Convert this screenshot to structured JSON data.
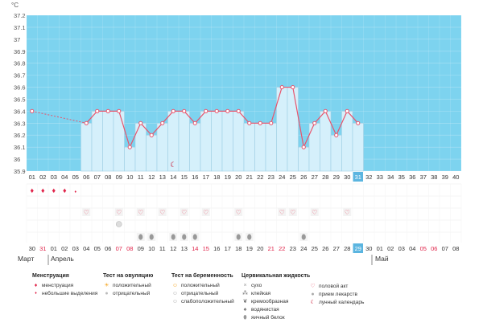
{
  "chart_data": {
    "type": "line",
    "unit_label": "°C",
    "y_ticks": [
      "35.9",
      "36",
      "36.1",
      "36.2",
      "36.3",
      "36.4",
      "36.5",
      "36.6",
      "36.7",
      "36.8",
      "36.9",
      "37",
      "37.1",
      "37.2"
    ],
    "ylim": [
      35.9,
      37.2
    ],
    "x_top": [
      "01",
      "02",
      "03",
      "04",
      "05",
      "06",
      "07",
      "08",
      "09",
      "10",
      "11",
      "12",
      "13",
      "14",
      "15",
      "16",
      "17",
      "18",
      "19",
      "20",
      "21",
      "22",
      "23",
      "24",
      "25",
      "26",
      "27",
      "28",
      "29",
      "30",
      "31",
      "32",
      "33",
      "34",
      "35",
      "36",
      "37",
      "38",
      "39",
      "40"
    ],
    "x_highlight_index": 30,
    "series": [
      {
        "values": [
          36.4,
          null,
          null,
          null,
          null,
          36.3,
          36.4,
          36.4,
          36.4,
          36.1,
          36.3,
          36.2,
          36.3,
          36.4,
          36.4,
          36.3,
          36.4,
          36.4,
          36.4,
          36.4,
          36.3,
          36.3,
          36.3,
          36.6,
          36.6,
          36.1,
          36.3,
          36.4,
          36.2,
          36.4,
          36.3
        ]
      }
    ],
    "dashed_segment": [
      0,
      5
    ],
    "bar_range": [
      5,
      30
    ],
    "dates_bottom": [
      "30",
      "31",
      "01",
      "02",
      "03",
      "04",
      "05",
      "06",
      "07",
      "08",
      "09",
      "10",
      "11",
      "12",
      "13",
      "14",
      "15",
      "16",
      "17",
      "18",
      "19",
      "20",
      "21",
      "22",
      "23",
      "24",
      "25",
      "26",
      "27",
      "28",
      "29",
      "30",
      "01",
      "02",
      "03",
      "04",
      "05",
      "06",
      "07",
      "08"
    ],
    "dates_bottom_red": [
      1,
      8,
      9,
      15,
      16,
      22,
      23,
      36,
      37
    ],
    "months": [
      "Март",
      "Апрель",
      "Май"
    ],
    "events": {
      "menstruation": [
        0,
        1,
        2,
        3
      ],
      "spotting": [
        4
      ],
      "sex": [
        5,
        8,
        10,
        12,
        14,
        16,
        19,
        23,
        24,
        26,
        29
      ],
      "ovulation_negative": [
        8
      ],
      "cervical_egg_white": [
        10,
        11,
        13,
        14,
        15,
        19,
        20,
        25
      ],
      "moon": [
        13
      ]
    },
    "legend": {
      "menses": {
        "title": "Менструация",
        "items": [
          "менструация",
          "небольшие выделения"
        ]
      },
      "ovulation": {
        "title": "Тест на овуляцию",
        "items": [
          "положительный",
          "отрицательный"
        ]
      },
      "pregnancy": {
        "title": "Тест на беременность",
        "items": [
          "положительный",
          "отрицательный",
          "слабоположительный"
        ]
      },
      "cervical": {
        "title": "Цервикальная жидкость",
        "items": [
          "сухо",
          "клейкая",
          "кремообразная",
          "водянистая",
          "яичный белок"
        ]
      },
      "other": {
        "items": [
          "половой акт",
          "прием лекарств",
          "лунный календарь"
        ]
      }
    },
    "colors": {
      "sky": "#7dd3ef",
      "bar": "#d5f0fb",
      "bar_stroke": "#9fcfe4",
      "line": "#e8546c",
      "highlight": "#5bb5e0",
      "red": "#e0244a"
    }
  }
}
